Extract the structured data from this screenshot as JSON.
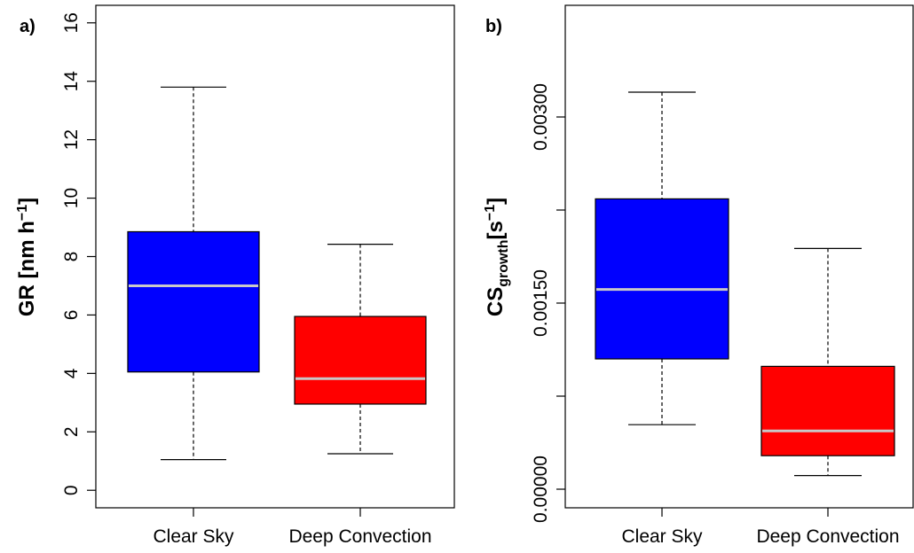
{
  "chart_data": [
    {
      "type": "boxplot",
      "panel_label": "a)",
      "ylabel": {
        "main": "GR [nm h",
        "sup": "−1",
        "close": "]"
      },
      "ylim": [
        -0.6,
        16.6
      ],
      "yticks": [
        0,
        2,
        4,
        6,
        8,
        10,
        12,
        14,
        16
      ],
      "ytick_labels": [
        "0",
        "2",
        "4",
        "6",
        "8",
        "10",
        "12",
        "14",
        "16"
      ],
      "categories": [
        "Clear Sky",
        "Deep Convection"
      ],
      "colors": [
        "#0000ff",
        "#ff0000"
      ],
      "median_color": "#c8c8c8",
      "boxes": [
        {
          "whisker_low": 1.05,
          "q1": 4.05,
          "median": 7.0,
          "q3": 8.85,
          "whisker_high": 13.8
        },
        {
          "whisker_low": 1.25,
          "q1": 2.95,
          "median": 3.82,
          "q3": 5.95,
          "whisker_high": 8.42
        }
      ]
    },
    {
      "type": "boxplot",
      "panel_label": "b)",
      "ylabel": {
        "main": "CS",
        "sub": "growth",
        "bracket": "[s",
        "sup": "−1",
        "close": "]"
      },
      "ylim": [
        -0.00015,
        0.0039
      ],
      "yticks": [
        0.0,
        0.00075,
        0.0015,
        0.00225,
        0.003
      ],
      "ytick_labels": [
        "0.00000",
        "",
        "0.00150",
        "",
        "0.00300"
      ],
      "categories": [
        "Clear Sky",
        "Deep Convection"
      ],
      "colors": [
        "#0000ff",
        "#ff0000"
      ],
      "median_color": "#c8c8c8",
      "boxes": [
        {
          "whisker_low": 0.00052,
          "q1": 0.00105,
          "median": 0.00161,
          "q3": 0.00234,
          "whisker_high": 0.0032
        },
        {
          "whisker_low": 0.00011,
          "q1": 0.00027,
          "median": 0.00047,
          "q3": 0.00099,
          "whisker_high": 0.00194
        }
      ]
    }
  ]
}
